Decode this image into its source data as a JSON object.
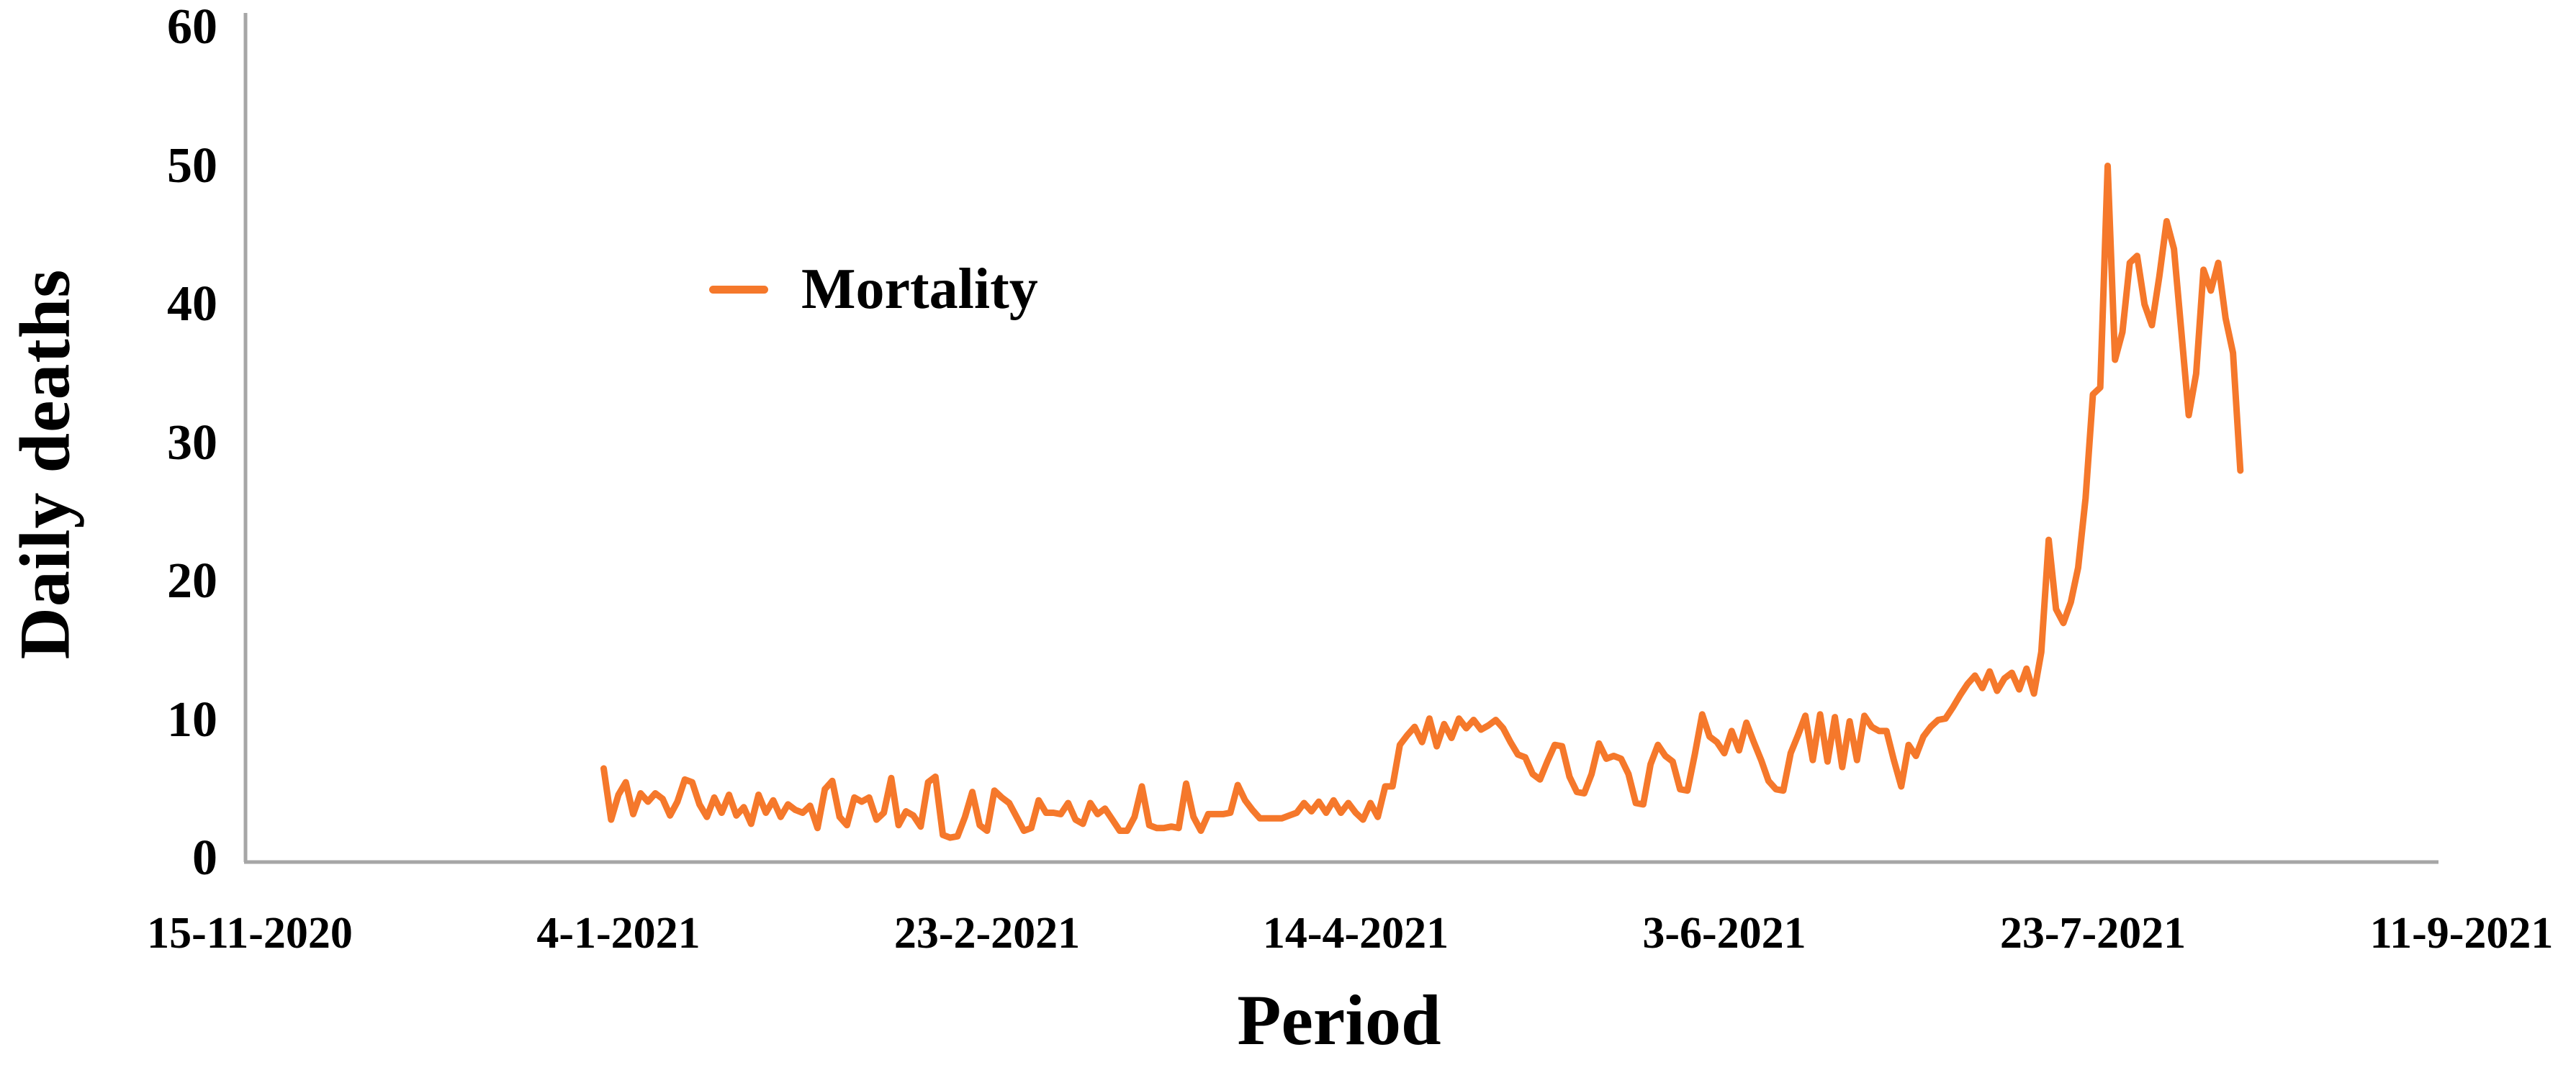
{
  "figure": {
    "background_color": "#FFFFFF",
    "text_color": "#000000",
    "axis_line_color": "#A6A6A6"
  },
  "legend": {
    "label": "Mortality",
    "swatch_color": "#F5782B"
  },
  "chart_data": {
    "type": "line",
    "title": "",
    "xlabel": "Period",
    "ylabel": "Daily deaths",
    "ylim": [
      0,
      60
    ],
    "y_ticks": [
      0,
      10,
      20,
      30,
      40,
      50,
      60
    ],
    "x_tick_labels": [
      "15-11-2020",
      "4-1-2021",
      "23-2-2021",
      "14-4-2021",
      "3-6-2021",
      "23-7-2021",
      "11-9-2021"
    ],
    "x_tick_interval_days": 50,
    "grid": false,
    "legend_position": "inside-upper-left",
    "series": [
      {
        "name": "Mortality",
        "color": "#F5782B",
        "frequency": "daily",
        "start_date": "2-1-2021",
        "end_date": "12-8-2021",
        "values": [
          6.5,
          2.8,
          4.6,
          5.5,
          3.2,
          4.7,
          4.1,
          4.7,
          4.3,
          3.1,
          4.1,
          5.7,
          5.5,
          3.9,
          3.0,
          4.4,
          3.3,
          4.6,
          3.1,
          3.7,
          2.5,
          4.6,
          3.3,
          4.2,
          3.0,
          3.9,
          3.5,
          3.3,
          3.8,
          2.2,
          5.0,
          5.6,
          3.0,
          2.4,
          4.4,
          4.1,
          4.4,
          2.8,
          3.3,
          5.8,
          2.4,
          3.4,
          3.1,
          2.3,
          5.5,
          5.9,
          1.7,
          1.5,
          1.6,
          3.0,
          4.8,
          2.4,
          2.0,
          4.9,
          4.4,
          4.0,
          3.0,
          2.0,
          2.2,
          4.2,
          3.3,
          3.3,
          3.2,
          4.0,
          2.8,
          2.5,
          4.0,
          3.2,
          3.6,
          2.8,
          2.0,
          2.0,
          3.0,
          5.2,
          2.4,
          2.2,
          2.2,
          2.3,
          2.2,
          5.4,
          3.0,
          2.0,
          3.2,
          3.2,
          3.2,
          3.3,
          5.3,
          4.2,
          3.5,
          2.9,
          2.9,
          2.9,
          2.9,
          3.1,
          3.3,
          4.0,
          3.4,
          4.1,
          3.3,
          4.2,
          3.3,
          4.0,
          3.3,
          2.8,
          4.0,
          3.0,
          5.2,
          5.2,
          8.2,
          8.9,
          9.5,
          8.4,
          10.1,
          8.1,
          9.7,
          8.7,
          10.1,
          9.4,
          10.0,
          9.3,
          9.6,
          10.0,
          9.4,
          8.4,
          7.5,
          7.3,
          6.1,
          5.7,
          7.0,
          8.2,
          8.1,
          5.9,
          4.8,
          4.7,
          6.1,
          8.3,
          7.2,
          7.4,
          7.2,
          6.1,
          4.0,
          3.9,
          6.8,
          8.2,
          7.4,
          7.0,
          5.0,
          4.9,
          7.5,
          10.4,
          8.8,
          8.4,
          7.6,
          9.2,
          7.8,
          9.8,
          8.4,
          7.1,
          5.6,
          5.0,
          4.9,
          7.6,
          8.9,
          10.3,
          7.1,
          10.4,
          7.0,
          10.2,
          6.6,
          9.9,
          7.1,
          10.3,
          9.5,
          9.2,
          9.2,
          7.1,
          5.2,
          8.2,
          7.4,
          8.8,
          9.5,
          10.0,
          10.1,
          10.9,
          11.8,
          12.6,
          13.2,
          12.3,
          13.5,
          12.1,
          13.0,
          13.4,
          12.2,
          13.7,
          11.9,
          14.9,
          23.0,
          18.0,
          17.0,
          18.5,
          21.0,
          26.0,
          33.5,
          34.0,
          50.0,
          36.0,
          38.0,
          43.0,
          43.5,
          40.0,
          38.5,
          42.0,
          46.0,
          44.0,
          38.0,
          32.0,
          35.0,
          42.5,
          41.0,
          43.0,
          39.0,
          36.5,
          28.0
        ]
      }
    ]
  }
}
